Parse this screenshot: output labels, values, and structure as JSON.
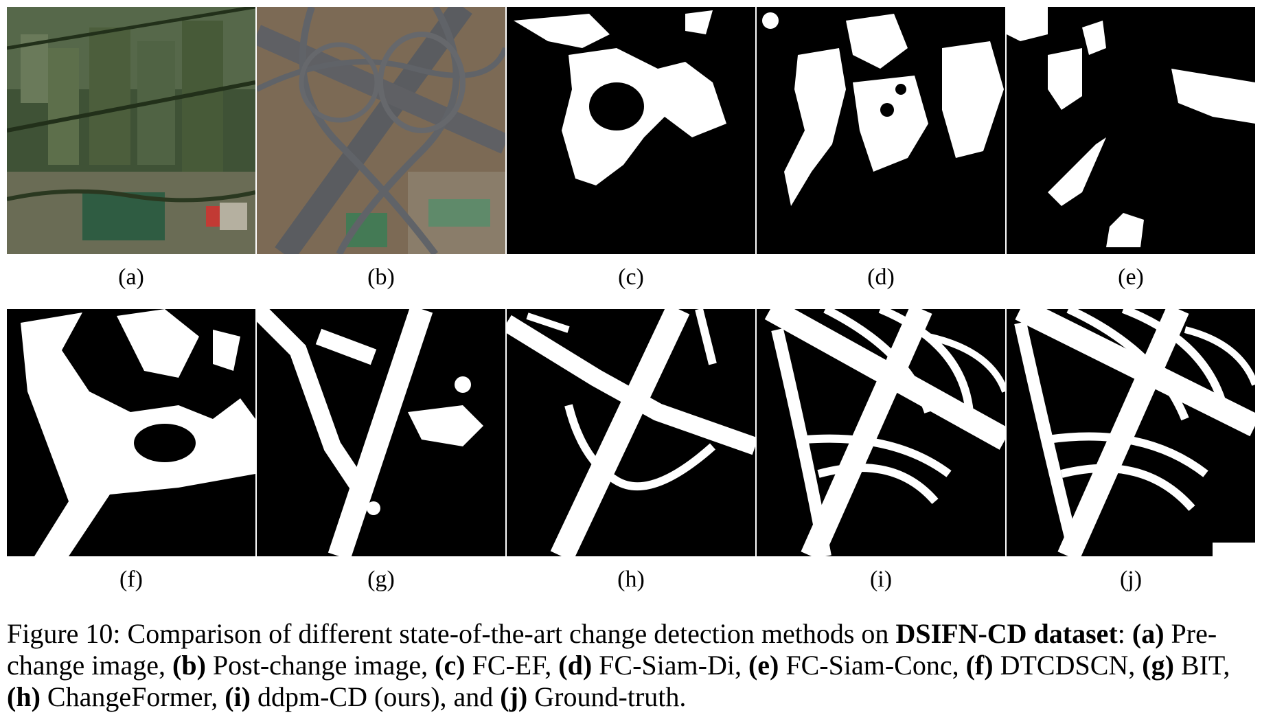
{
  "panels": [
    {
      "label": "(a)",
      "kind": "aerial-farmland"
    },
    {
      "label": "(b)",
      "kind": "aerial-highway"
    },
    {
      "label": "(c)",
      "kind": "mask-fc-ef"
    },
    {
      "label": "(d)",
      "kind": "mask-fc-siam-di"
    },
    {
      "label": "(e)",
      "kind": "mask-fc-siam-conc"
    },
    {
      "label": "(f)",
      "kind": "mask-dtcdscn"
    },
    {
      "label": "(g)",
      "kind": "mask-bit"
    },
    {
      "label": "(h)",
      "kind": "mask-changeformer"
    },
    {
      "label": "(i)",
      "kind": "mask-ddpm-cd"
    },
    {
      "label": "(j)",
      "kind": "mask-ground-truth"
    }
  ],
  "caption": {
    "prefix": "Figure 10: Comparison of different state-of-the-art change detection methods on ",
    "dataset": "DSIFN-CD dataset",
    "colon": ":",
    "items": [
      {
        "key": "(a)",
        "text": " Pre-change image, "
      },
      {
        "key": "(b)",
        "text": " Post-change image, "
      },
      {
        "key": "(c)",
        "text": " FC-EF, "
      },
      {
        "key": "(d)",
        "text": " FC-Siam-Di, "
      },
      {
        "key": "(e)",
        "text": " FC-Siam-Conc, "
      },
      {
        "key": "(f)",
        "text": " DTCDSCN, "
      },
      {
        "key": "(g)",
        "text": " BIT, "
      },
      {
        "key": "(h)",
        "text": " ChangeFormer, "
      },
      {
        "key": "(i)",
        "text": " ddpm-CD (ours), and "
      },
      {
        "key": "(j)",
        "text": " Ground-truth."
      }
    ]
  }
}
